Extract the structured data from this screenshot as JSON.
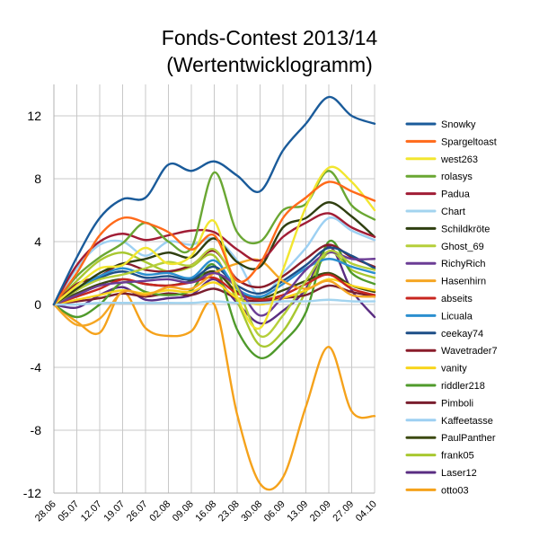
{
  "chart_data": {
    "type": "line",
    "title": "Fonds-Contest 2013/14",
    "subtitle": "(Wertentwicklogramm)",
    "xlabel": "",
    "ylabel": "",
    "ylim": [
      -12,
      14
    ],
    "yticks": [
      12,
      8,
      4,
      0,
      -4,
      -8,
      -12
    ],
    "categories": [
      "28.06",
      "05.07",
      "12.07",
      "19.07",
      "26.07",
      "02.08",
      "09.08",
      "16.08",
      "23.08",
      "30.08",
      "06.09",
      "13.09",
      "20.09",
      "27.09",
      "04.10"
    ],
    "legend_position": "right",
    "series": [
      {
        "name": "Snowky",
        "color": "#1a5b9a",
        "values": [
          0,
          3.0,
          5.5,
          6.7,
          6.8,
          8.9,
          8.5,
          9.1,
          8.2,
          7.2,
          9.8,
          11.5,
          13.2,
          12.0,
          11.5
        ]
      },
      {
        "name": "Spargeltoast",
        "color": "#ff6a1a",
        "values": [
          0,
          2.0,
          4.4,
          5.5,
          5.2,
          4.6,
          3.5,
          4.4,
          1.5,
          2.6,
          5.5,
          6.8,
          7.8,
          7.2,
          6.6
        ]
      },
      {
        "name": "west263",
        "color": "#f2e630",
        "values": [
          0,
          1.2,
          2.3,
          2.5,
          3.6,
          2.6,
          3.1,
          5.3,
          0.5,
          -1.5,
          2.2,
          6.2,
          8.7,
          7.8,
          6.0
        ]
      },
      {
        "name": "rolasys",
        "color": "#6aa733",
        "values": [
          0,
          1.8,
          3.0,
          3.9,
          5.2,
          4.0,
          3.6,
          8.4,
          4.6,
          4.0,
          6.0,
          6.4,
          8.5,
          6.3,
          5.4
        ]
      },
      {
        "name": "Padua",
        "color": "#a11d35",
        "values": [
          0,
          2.5,
          4.0,
          4.5,
          4.1,
          4.4,
          4.7,
          4.6,
          3.5,
          2.8,
          4.3,
          5.2,
          5.8,
          4.9,
          4.3
        ]
      },
      {
        "name": "Chart",
        "color": "#a3d4ef",
        "values": [
          0,
          0.0,
          0.1,
          0.1,
          0.1,
          0.1,
          0.1,
          0.2,
          0.1,
          0.1,
          0.2,
          0.2,
          0.3,
          0.2,
          0.2
        ]
      },
      {
        "name": "Schildkröte",
        "color": "#2f3f10",
        "values": [
          0,
          1.0,
          2.0,
          2.6,
          2.9,
          3.3,
          3.0,
          4.2,
          2.7,
          2.4,
          4.9,
          5.5,
          6.5,
          5.6,
          4.3
        ]
      },
      {
        "name": "Ghost_69",
        "color": "#b5cf3a",
        "values": [
          0,
          0.9,
          1.6,
          1.9,
          2.3,
          2.7,
          2.5,
          3.5,
          1.1,
          -2.0,
          -0.7,
          1.5,
          3.4,
          2.6,
          2.2
        ]
      },
      {
        "name": "RichyRich",
        "color": "#6b3c95",
        "values": [
          0,
          0.6,
          1.2,
          1.4,
          1.5,
          1.6,
          1.4,
          2.0,
          1.1,
          -0.7,
          0.5,
          2.2,
          3.3,
          2.9,
          2.9
        ]
      },
      {
        "name": "Hasenhirn",
        "color": "#f5a623",
        "values": [
          0,
          -1.3,
          -0.9,
          0.8,
          0.6,
          1.1,
          1.0,
          2.0,
          2.6,
          2.8,
          1.5,
          1.0,
          1.5,
          0.6,
          0.5
        ]
      },
      {
        "name": "abseits",
        "color": "#c8261f",
        "values": [
          0,
          0.5,
          1.0,
          1.6,
          1.3,
          1.2,
          1.4,
          1.7,
          0.7,
          0.3,
          0.6,
          1.3,
          1.9,
          1.0,
          0.6
        ]
      },
      {
        "name": "Licuala",
        "color": "#2b8fcf",
        "values": [
          0,
          1.0,
          1.8,
          2.3,
          1.9,
          2.0,
          1.7,
          2.8,
          1.0,
          0.5,
          1.3,
          2.3,
          2.9,
          2.4,
          2.0
        ]
      },
      {
        "name": "ceekay74",
        "color": "#1d4e87",
        "values": [
          0,
          0.9,
          1.7,
          2.1,
          1.7,
          1.8,
          1.6,
          2.4,
          1.2,
          0.7,
          1.5,
          2.5,
          3.6,
          3.1,
          2.3
        ]
      },
      {
        "name": "Wavetrader7",
        "color": "#8a1c2a",
        "values": [
          0,
          1.3,
          1.8,
          2.6,
          2.2,
          2.1,
          2.5,
          3.4,
          1.6,
          1.1,
          1.8,
          2.9,
          3.8,
          3.0,
          2.4
        ]
      },
      {
        "name": "vanity",
        "color": "#f8d51c",
        "values": [
          0,
          0.3,
          0.6,
          0.9,
          0.7,
          0.9,
          0.8,
          1.4,
          0.4,
          0.0,
          0.4,
          0.9,
          1.6,
          1.2,
          0.9
        ]
      },
      {
        "name": "riddler218",
        "color": "#4f9a2b",
        "values": [
          0,
          -0.8,
          0.0,
          1.4,
          0.8,
          0.6,
          0.9,
          2.5,
          -1.6,
          -3.4,
          -2.4,
          -0.5,
          4.0,
          2.0,
          1.3
        ]
      },
      {
        "name": "Pimboli",
        "color": "#7a1e2e",
        "values": [
          0,
          0.2,
          0.4,
          0.7,
          0.5,
          0.7,
          0.6,
          1.0,
          0.4,
          0.2,
          0.4,
          0.6,
          1.2,
          0.8,
          0.5
        ]
      },
      {
        "name": "Kaffeetasse",
        "color": "#9dd0f2",
        "values": [
          0,
          2.3,
          3.8,
          4.0,
          3.1,
          4.0,
          3.8,
          4.2,
          2.8,
          0.5,
          2.0,
          3.6,
          5.5,
          4.7,
          4.1
        ]
      },
      {
        "name": "PaulPanther",
        "color": "#3c4a12",
        "values": [
          0,
          0.7,
          1.3,
          1.6,
          1.3,
          1.2,
          1.5,
          2.1,
          0.8,
          0.4,
          0.9,
          1.5,
          2.0,
          1.2,
          0.8
        ]
      },
      {
        "name": "frank05",
        "color": "#a8c830",
        "values": [
          0,
          1.5,
          2.8,
          3.3,
          2.7,
          2.1,
          2.4,
          3.1,
          0.2,
          -2.6,
          -1.7,
          0.8,
          3.3,
          2.2,
          1.7
        ]
      },
      {
        "name": "Laser12",
        "color": "#5a2d82",
        "values": [
          0,
          -0.2,
          0.6,
          1.1,
          0.3,
          0.4,
          0.6,
          1.6,
          0.1,
          -1.2,
          -0.4,
          1.0,
          3.7,
          0.9,
          -0.8
        ]
      },
      {
        "name": "otto03",
        "color": "#f5a21b",
        "values": [
          0,
          -1.1,
          -1.8,
          0.8,
          -1.5,
          -2.0,
          -1.7,
          0.0,
          -7.0,
          -11.4,
          -11.0,
          -6.5,
          -2.7,
          -6.8,
          -7.1
        ]
      }
    ]
  }
}
